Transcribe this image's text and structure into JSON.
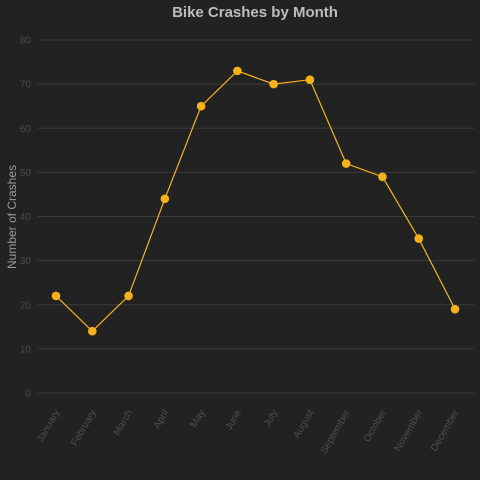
{
  "chart_data": {
    "type": "line",
    "title": "Bike Crashes by Month",
    "xlabel": "",
    "ylabel": "Number of Crashes",
    "categories": [
      "January",
      "February",
      "March",
      "April",
      "May",
      "June",
      "July",
      "August",
      "September",
      "October",
      "November",
      "December"
    ],
    "series": [
      {
        "values": [
          22,
          14,
          22,
          44,
          65,
          73,
          70,
          71,
          52,
          49,
          35,
          19
        ]
      }
    ],
    "ylim": [
      0,
      80
    ],
    "yticks": [
      0,
      10,
      20,
      30,
      40,
      50,
      60,
      70,
      80
    ],
    "grid": true,
    "legend": "none",
    "colors": {
      "background": "#222222",
      "line": "#f5b21b",
      "grid": "#3b3b3b"
    }
  }
}
